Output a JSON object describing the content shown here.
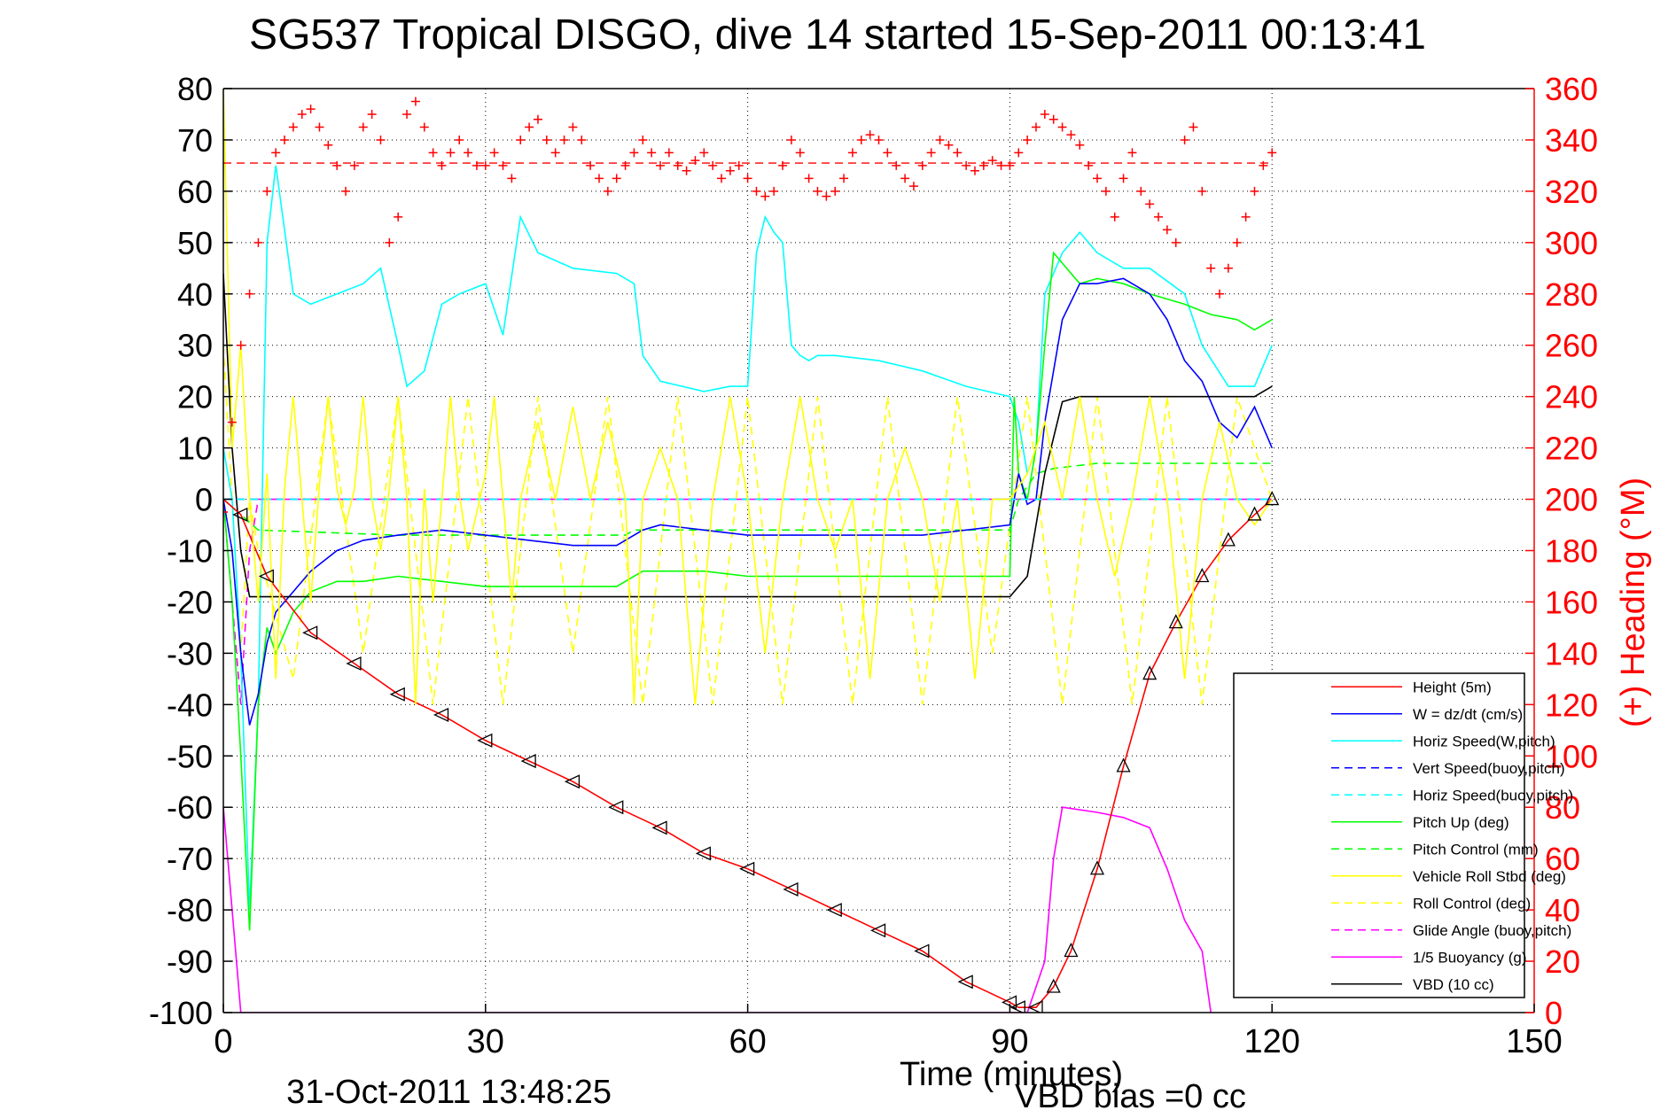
{
  "chart_data": {
    "type": "line",
    "title": "SG537 Tropical DISGO, dive 14 started 15-Sep-2011 00:13:41",
    "xlabel": "Time (minutes)",
    "ylabel": "",
    "y2label": "(+) Heading (°M)",
    "xlim": [
      0,
      150
    ],
    "ylim": [
      -100,
      80
    ],
    "y2lim": [
      0,
      360
    ],
    "xticks": [
      0,
      30,
      60,
      90,
      120,
      150
    ],
    "yticks": [
      80,
      70,
      60,
      50,
      40,
      30,
      20,
      10,
      0,
      -10,
      -20,
      -30,
      -40,
      -50,
      -60,
      -70,
      -80,
      -90,
      -100
    ],
    "y2ticks": [
      360,
      340,
      320,
      300,
      280,
      260,
      240,
      220,
      200,
      180,
      160,
      140,
      120,
      100,
      80,
      60,
      40,
      20,
      0
    ],
    "grid": true,
    "legend_position": "bottom-right",
    "footer_left": "31-Oct-2011 13:48:25",
    "footer_right": "VBD bias =0 cc",
    "series": [
      {
        "name": "Height (5m)",
        "color": "#ff0000",
        "style": "solid",
        "x": [
          0,
          2,
          5,
          10,
          15,
          20,
          25,
          30,
          35,
          40,
          45,
          50,
          55,
          60,
          65,
          70,
          75,
          80,
          85,
          90,
          91,
          93,
          95,
          97,
          100,
          103,
          106,
          109,
          112,
          115,
          118,
          120
        ],
        "y": [
          0,
          -3,
          -15,
          -26,
          -32,
          -38,
          -42,
          -47,
          -51,
          -55,
          -60,
          -64,
          -69,
          -72,
          -76,
          -80,
          -84,
          -88,
          -94,
          -98,
          -99,
          -99,
          -95,
          -88,
          -72,
          -52,
          -34,
          -24,
          -15,
          -8,
          -3,
          0
        ]
      },
      {
        "name": "W = dz/dt (cm/s)",
        "color": "#0000ff",
        "style": "solid",
        "x": [
          0,
          1,
          2,
          3,
          4,
          5,
          6,
          7,
          8,
          10,
          13,
          16,
          20,
          25,
          30,
          35,
          40,
          45,
          48,
          50,
          55,
          60,
          65,
          70,
          75,
          80,
          85,
          90,
          91,
          92,
          93,
          94,
          96,
          98,
          100,
          103,
          106,
          108,
          110,
          112,
          114,
          116,
          118,
          120
        ],
        "y": [
          0,
          -10,
          -30,
          -44,
          -38,
          -28,
          -22,
          -20,
          -18,
          -14,
          -10,
          -8,
          -7,
          -6,
          -7,
          -8,
          -9,
          -9,
          -6,
          -5,
          -6,
          -7,
          -7,
          -7,
          -7,
          -7,
          -6,
          -5,
          5,
          -1,
          0,
          15,
          35,
          42,
          42,
          43,
          40,
          35,
          27,
          23,
          15,
          12,
          18,
          10
        ]
      },
      {
        "name": "Horiz Speed(W,pitch)",
        "color": "#00ffff",
        "style": "solid",
        "x": [
          0,
          1,
          2,
          3,
          4,
          5,
          6,
          8,
          10,
          13,
          16,
          18,
          20,
          21,
          23,
          25,
          27,
          30,
          32,
          34,
          36,
          40,
          45,
          47,
          48,
          50,
          55,
          58,
          60,
          61,
          62,
          63,
          64,
          65,
          66,
          67,
          68,
          70,
          75,
          80,
          85,
          90,
          91,
          92,
          93,
          94,
          96,
          98,
          100,
          103,
          106,
          110,
          112,
          115,
          118,
          120
        ],
        "y": [
          10,
          0,
          -30,
          -80,
          -40,
          50,
          65,
          40,
          38,
          40,
          42,
          45,
          30,
          22,
          25,
          38,
          40,
          42,
          32,
          55,
          48,
          45,
          44,
          42,
          28,
          23,
          21,
          22,
          22,
          48,
          55,
          52,
          50,
          30,
          28,
          27,
          28,
          28,
          27,
          25,
          22,
          20,
          15,
          5,
          10,
          40,
          48,
          52,
          48,
          45,
          45,
          40,
          30,
          22,
          22,
          30
        ]
      },
      {
        "name": "Vert Speed(buoy,pitch)",
        "color": "#0000ff",
        "style": "dashed",
        "x": [
          0,
          120
        ],
        "y": [
          0,
          0
        ]
      },
      {
        "name": "Horiz Speed(buoy,pitch)",
        "color": "#00ffff",
        "style": "dashed",
        "x": [
          0,
          120
        ],
        "y": [
          0,
          0
        ]
      },
      {
        "name": "Pitch Up (deg)",
        "color": "#00ff00",
        "style": "solid",
        "x": [
          0,
          1,
          2,
          3,
          4,
          5,
          6,
          8,
          10,
          13,
          16,
          20,
          25,
          30,
          35,
          40,
          45,
          48,
          50,
          55,
          60,
          65,
          70,
          75,
          80,
          85,
          90,
          90.5,
          91,
          92,
          93,
          94,
          95,
          98,
          100,
          103,
          106,
          110,
          113,
          116,
          118,
          120
        ],
        "y": [
          0,
          -20,
          -50,
          -84,
          -40,
          -25,
          -30,
          -22,
          -18,
          -16,
          -16,
          -15,
          -16,
          -17,
          -17,
          -17,
          -17,
          -14,
          -14,
          -14,
          -15,
          -15,
          -15,
          -15,
          -15,
          -15,
          -15,
          20,
          5,
          0,
          10,
          30,
          48,
          42,
          43,
          42,
          40,
          38,
          36,
          35,
          33,
          35
        ]
      },
      {
        "name": "Pitch Control (mm)",
        "color": "#00ff00",
        "style": "dashed",
        "x": [
          0,
          2,
          4,
          20,
          46,
          47,
          90,
          91,
          93,
          95,
          100,
          110,
          120
        ],
        "y": [
          0,
          -3,
          -6,
          -7,
          -7,
          -6,
          -6,
          0,
          5,
          6,
          7,
          7,
          7
        ]
      },
      {
        "name": "Vehicle Roll Stbd (deg)",
        "color": "#ffff00",
        "style": "solid",
        "x": [
          0,
          1,
          2,
          3,
          4,
          5,
          6,
          7,
          8,
          9,
          10,
          11,
          12,
          13,
          14,
          15,
          16,
          17,
          18,
          19,
          20,
          21,
          22,
          23,
          24,
          25,
          26,
          27,
          28,
          30,
          31,
          32,
          33,
          34,
          36,
          38,
          40,
          42,
          44,
          46,
          47,
          48,
          50,
          52,
          54,
          56,
          58,
          60,
          62,
          64,
          66,
          68,
          70,
          72,
          74,
          76,
          78,
          80,
          82,
          84,
          86,
          88,
          90,
          92,
          94,
          96,
          98,
          100,
          102,
          104,
          106,
          108,
          110,
          112,
          114,
          116,
          118,
          120
        ],
        "y": [
          80,
          10,
          30,
          0,
          -20,
          5,
          -35,
          2,
          20,
          0,
          -20,
          3,
          20,
          2,
          -5,
          2,
          20,
          0,
          -10,
          2,
          20,
          0,
          -40,
          2,
          -20,
          0,
          20,
          1,
          -10,
          5,
          20,
          0,
          -20,
          0,
          15,
          0,
          18,
          0,
          15,
          0,
          -40,
          0,
          10,
          0,
          -40,
          0,
          20,
          0,
          -30,
          0,
          20,
          0,
          -10,
          0,
          -35,
          0,
          10,
          0,
          -20,
          0,
          -35,
          0,
          0,
          5,
          15,
          0,
          20,
          0,
          -15,
          0,
          20,
          0,
          -35,
          0,
          15,
          0,
          -5,
          0
        ]
      },
      {
        "name": "Roll Control (deg)",
        "color": "#ffff00",
        "style": "dashed",
        "x": [
          0,
          1,
          2,
          3,
          4,
          8,
          12,
          16,
          20,
          24,
          28,
          32,
          36,
          40,
          44,
          48,
          52,
          56,
          60,
          64,
          68,
          72,
          76,
          80,
          84,
          88,
          92,
          96,
          100,
          104,
          108,
          112,
          116,
          120
        ],
        "y": [
          30,
          0,
          -30,
          0,
          -10,
          -35,
          20,
          -30,
          20,
          -40,
          20,
          -40,
          20,
          -30,
          20,
          -40,
          20,
          -40,
          20,
          -40,
          20,
          -40,
          20,
          -40,
          20,
          -30,
          20,
          -40,
          20,
          -40,
          20,
          -40,
          20,
          0
        ]
      },
      {
        "name": "Glide Angle (buoy,pitch)",
        "color": "#ff00ff",
        "style": "dashed",
        "x": [
          0,
          1,
          2,
          3,
          4,
          120
        ],
        "y": [
          0,
          -20,
          -40,
          -10,
          0,
          0
        ]
      },
      {
        "name": "1/5 Buoyancy (g)",
        "color": "#ff00ff",
        "style": "solid",
        "x": [
          0,
          1,
          2,
          90,
          92,
          94,
          95,
          96,
          100,
          103,
          106,
          108,
          110,
          112,
          113
        ],
        "y": [
          -60,
          -80,
          -100,
          -100,
          -100,
          -90,
          -70,
          -60,
          -61,
          -62,
          -64,
          -72,
          -82,
          -88,
          -100
        ]
      },
      {
        "name": "VBD (10 cc)",
        "color": "#000000",
        "style": "solid",
        "x": [
          0,
          1,
          2,
          3,
          20,
          60,
          90,
          92,
          94,
          96,
          98,
          100,
          110,
          118,
          120
        ],
        "y": [
          44,
          10,
          -10,
          -19,
          -19,
          -19,
          -19,
          -15,
          5,
          19,
          20,
          20,
          20,
          20,
          22
        ]
      }
    ],
    "heading_series": {
      "name": "(+) Heading",
      "axis": "y2",
      "marker": "plus",
      "color": "#ff0000",
      "reference_value": 331,
      "x": [
        0,
        1,
        2,
        3,
        4,
        5,
        6,
        7,
        8,
        9,
        10,
        11,
        12,
        13,
        14,
        15,
        16,
        17,
        18,
        19,
        20,
        21,
        22,
        23,
        24,
        25,
        26,
        27,
        28,
        29,
        30,
        31,
        32,
        33,
        34,
        35,
        36,
        37,
        38,
        39,
        40,
        41,
        42,
        43,
        44,
        45,
        46,
        47,
        48,
        49,
        50,
        51,
        52,
        53,
        54,
        55,
        56,
        57,
        58,
        59,
        60,
        61,
        62,
        63,
        64,
        65,
        66,
        67,
        68,
        69,
        70,
        71,
        72,
        73,
        74,
        75,
        76,
        77,
        78,
        79,
        80,
        81,
        82,
        83,
        84,
        85,
        86,
        87,
        88,
        89,
        90,
        91,
        92,
        93,
        94,
        95,
        96,
        97,
        98,
        99,
        100,
        101,
        102,
        103,
        104,
        105,
        106,
        107,
        108,
        109,
        110,
        111,
        112,
        113,
        114,
        115,
        116,
        117,
        118,
        119,
        120
      ],
      "y": [
        195,
        230,
        260,
        280,
        300,
        320,
        335,
        340,
        345,
        350,
        352,
        345,
        338,
        330,
        320,
        330,
        345,
        350,
        340,
        300,
        310,
        350,
        355,
        345,
        335,
        330,
        335,
        340,
        335,
        330,
        330,
        335,
        330,
        325,
        340,
        345,
        348,
        340,
        335,
        340,
        345,
        340,
        330,
        325,
        320,
        325,
        330,
        335,
        340,
        335,
        330,
        335,
        330,
        328,
        332,
        335,
        330,
        325,
        328,
        330,
        325,
        320,
        318,
        320,
        330,
        340,
        335,
        325,
        320,
        318,
        320,
        325,
        335,
        340,
        342,
        340,
        335,
        330,
        325,
        322,
        330,
        335,
        340,
        338,
        335,
        330,
        328,
        330,
        332,
        330,
        330,
        335,
        340,
        345,
        350,
        348,
        345,
        342,
        338,
        330,
        325,
        320,
        310,
        325,
        335,
        320,
        315,
        310,
        305,
        300,
        340,
        345,
        320,
        290,
        280,
        290,
        300,
        310,
        320,
        330,
        335
      ]
    }
  }
}
